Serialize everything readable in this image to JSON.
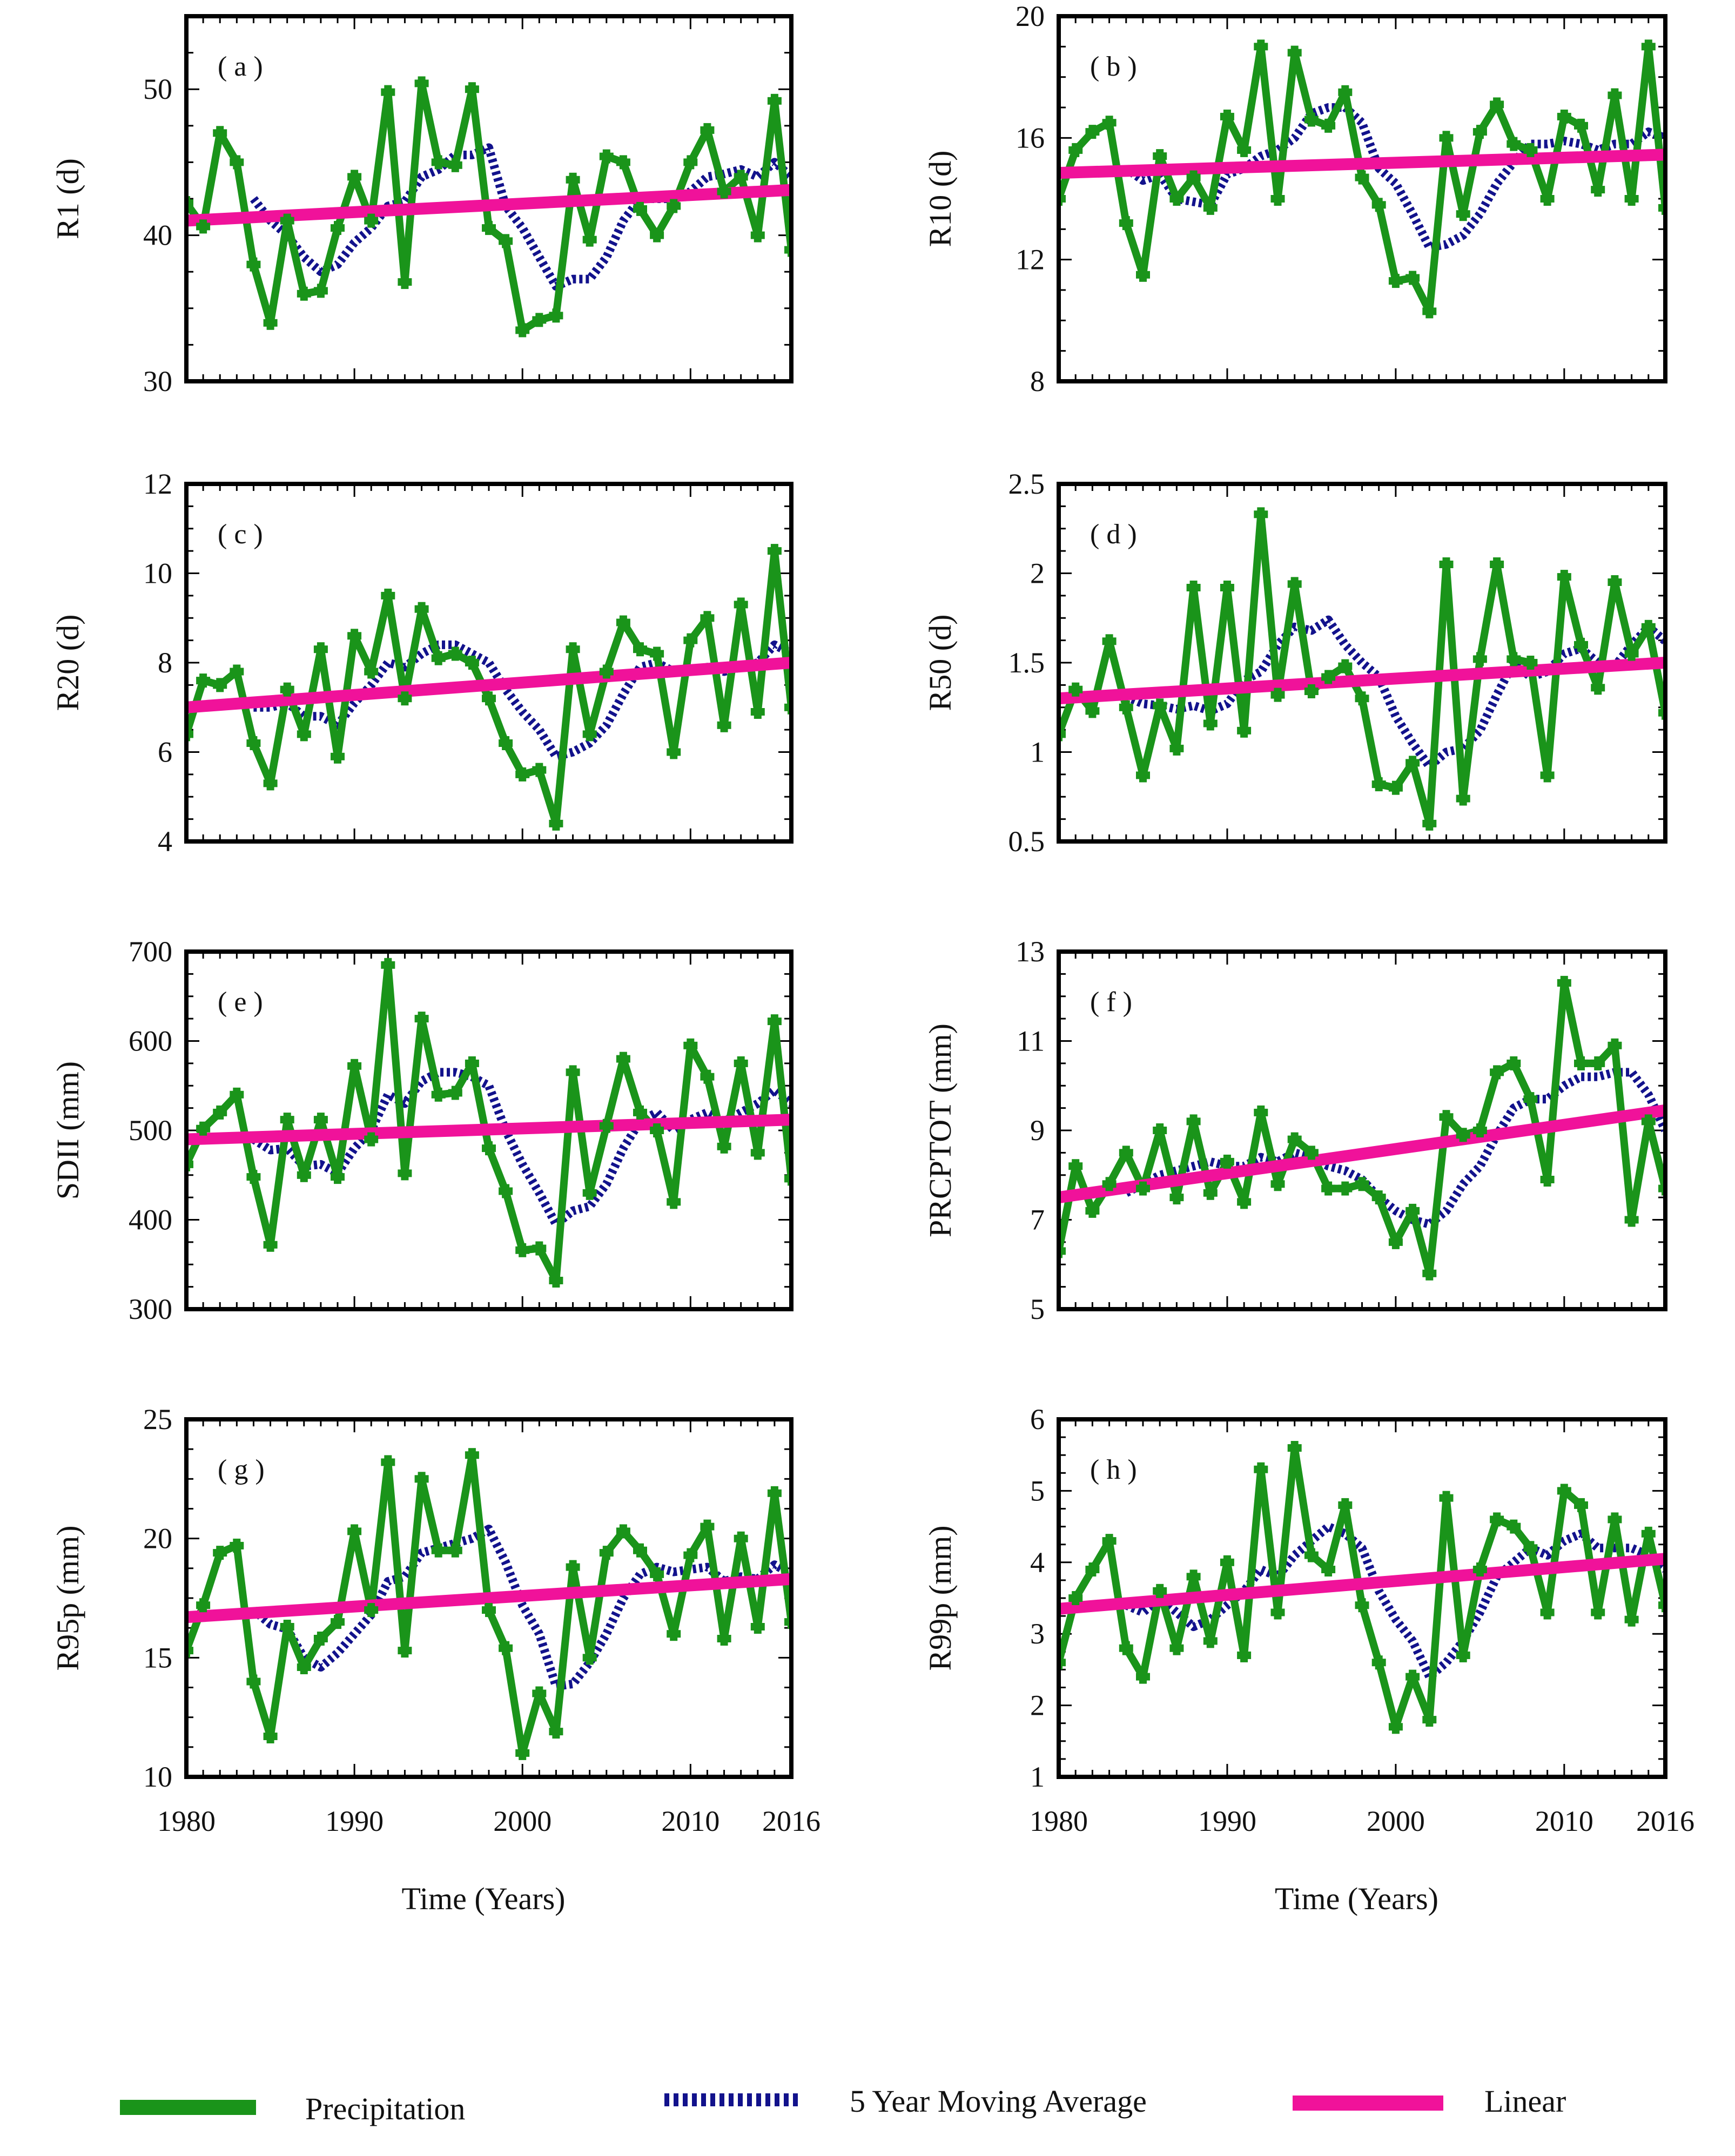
{
  "colors": {
    "precip": "#1a941a",
    "moving_avg": "#12128c",
    "linear": "#f0129a",
    "axis": "#000000"
  },
  "legend": {
    "precip": "Precipitation",
    "moving_avg": "5 Year Moving Average",
    "linear": "Linear"
  },
  "chart_data": [
    {
      "id": "a",
      "tag": "( a )",
      "type": "line",
      "ylabel": "R1 (d)",
      "ylim": [
        30,
        55
      ],
      "yticks": [
        30,
        40,
        50
      ],
      "xlabel": "Time (Years)",
      "xlim": [
        1980,
        2016
      ],
      "xticks": [
        "1980",
        "1990",
        "2000",
        "2010",
        "2016"
      ],
      "x_start": 1980,
      "series": [
        {
          "name": "Precipitation",
          "values": [
            42.2,
            40.6,
            47.0,
            45.0,
            38.0,
            34.0,
            41.0,
            36.0,
            36.2,
            40.5,
            44.0,
            41.0,
            49.8,
            36.8,
            50.4,
            45.0,
            44.8,
            50.0,
            40.5,
            39.6,
            33.5,
            34.2,
            34.5,
            43.8,
            39.7,
            45.4,
            45.0,
            41.8,
            40.0,
            42.0,
            45.0,
            47.2,
            43.0,
            44.0,
            40.0,
            49.2,
            39.0
          ]
        },
        {
          "name": "5 Year Moving Average",
          "values": [
            null,
            null,
            null,
            null,
            42.5,
            41.0,
            40.0,
            38.5,
            37.5,
            38.0,
            39.5,
            40.5,
            42.0,
            42.3,
            44.0,
            44.5,
            45.5,
            45.5,
            46.0,
            42.0,
            40.5,
            38.5,
            36.5,
            37.0,
            37.0,
            38.5,
            41.0,
            42.5,
            42.5,
            42.5,
            43.0,
            44.0,
            44.2,
            44.5,
            44.0,
            45.0,
            44.0
          ]
        },
        {
          "name": "Linear",
          "values": [
            41.0,
            43.1
          ]
        }
      ]
    },
    {
      "id": "b",
      "tag": "( b )",
      "type": "line",
      "ylabel": "R10 (d)",
      "ylim": [
        8,
        20
      ],
      "yticks": [
        8,
        12,
        16,
        20
      ],
      "xlabel": "Time (Years)",
      "xlim": [
        1980,
        2016
      ],
      "xticks": [
        "1980",
        "1990",
        "2000",
        "2010",
        "2016"
      ],
      "x_start": 1980,
      "series": [
        {
          "name": "Precipitation",
          "values": [
            14.0,
            15.6,
            16.2,
            16.5,
            13.2,
            11.5,
            15.4,
            14.0,
            14.7,
            13.7,
            16.7,
            15.6,
            19.0,
            14.0,
            18.8,
            16.6,
            16.4,
            17.5,
            14.7,
            13.8,
            11.3,
            11.4,
            10.3,
            16.0,
            13.5,
            16.2,
            17.1,
            15.8,
            15.6,
            14.0,
            16.7,
            16.4,
            14.3,
            17.4,
            14.0,
            19.0,
            13.7
          ]
        },
        {
          "name": "5 Year Moving Average",
          "values": [
            null,
            null,
            null,
            null,
            15.0,
            14.6,
            14.8,
            14.0,
            13.9,
            13.8,
            14.8,
            15.0,
            15.4,
            15.6,
            16.0,
            16.8,
            17.0,
            17.0,
            16.5,
            15.0,
            14.5,
            13.5,
            12.4,
            12.5,
            12.8,
            13.5,
            14.5,
            15.2,
            15.8,
            15.8,
            15.9,
            15.8,
            15.6,
            15.8,
            15.8,
            16.2,
            16.0
          ]
        },
        {
          "name": "Linear",
          "values": [
            14.85,
            15.45
          ]
        }
      ]
    },
    {
      "id": "c",
      "tag": "( c )",
      "type": "line",
      "ylabel": "R20 (d)",
      "ylim": [
        4,
        12
      ],
      "yticks": [
        4,
        6,
        8,
        10,
        12
      ],
      "xlabel": "Time (Years)",
      "xlim": [
        1980,
        2016
      ],
      "xticks": [
        "1980",
        "1990",
        "2000",
        "2010",
        "2016"
      ],
      "x_start": 1980,
      "series": [
        {
          "name": "Precipitation",
          "values": [
            6.4,
            7.6,
            7.5,
            7.8,
            6.2,
            5.3,
            7.4,
            6.4,
            8.3,
            5.9,
            8.6,
            7.8,
            9.5,
            7.2,
            9.2,
            8.1,
            8.2,
            8.0,
            7.2,
            6.2,
            5.5,
            5.6,
            4.4,
            8.3,
            6.4,
            7.8,
            8.9,
            8.3,
            8.2,
            6.0,
            8.5,
            9.0,
            6.6,
            9.3,
            6.9,
            10.5,
            7.0
          ]
        },
        {
          "name": "5 Year Moving Average",
          "values": [
            null,
            null,
            null,
            null,
            7.0,
            7.0,
            7.1,
            6.8,
            6.8,
            6.6,
            7.1,
            7.5,
            8.0,
            7.9,
            8.2,
            8.4,
            8.4,
            8.2,
            8.0,
            7.4,
            6.9,
            6.5,
            5.9,
            6.0,
            6.2,
            6.6,
            7.3,
            7.9,
            8.0,
            7.8,
            7.8,
            7.9,
            7.8,
            7.9,
            8.0,
            8.4,
            8.2
          ]
        },
        {
          "name": "Linear",
          "values": [
            7.0,
            8.0
          ]
        }
      ]
    },
    {
      "id": "d",
      "tag": "( d )",
      "type": "line",
      "ylabel": "R50 (d)",
      "ylim": [
        0.5,
        2.5
      ],
      "yticks": [
        0.5,
        1.0,
        1.5,
        2.0,
        2.5
      ],
      "xlabel": "Time (Years)",
      "xlim": [
        1980,
        2016
      ],
      "xticks": [
        "1980",
        "1990",
        "2000",
        "2010",
        "2016"
      ],
      "x_start": 1980,
      "series": [
        {
          "name": "Precipitation",
          "values": [
            1.1,
            1.35,
            1.23,
            1.62,
            1.25,
            0.87,
            1.26,
            1.02,
            1.92,
            1.16,
            1.92,
            1.12,
            2.33,
            1.32,
            1.94,
            1.34,
            1.42,
            1.48,
            1.3,
            0.82,
            0.8,
            0.94,
            0.6,
            2.05,
            0.74,
            1.52,
            2.05,
            1.52,
            1.5,
            0.87,
            1.98,
            1.6,
            1.36,
            1.95,
            1.55,
            1.7,
            1.22
          ]
        },
        {
          "name": "5 Year Moving Average",
          "values": [
            null,
            null,
            null,
            null,
            1.31,
            1.27,
            1.26,
            1.24,
            1.26,
            1.23,
            1.27,
            1.4,
            1.45,
            1.6,
            1.7,
            1.68,
            1.74,
            1.6,
            1.5,
            1.42,
            1.2,
            1.05,
            0.92,
            1.0,
            1.02,
            1.12,
            1.32,
            1.5,
            1.42,
            1.45,
            1.55,
            1.58,
            1.5,
            1.48,
            1.6,
            1.7,
            1.62
          ]
        },
        {
          "name": "Linear",
          "values": [
            1.3,
            1.5
          ]
        }
      ]
    },
    {
      "id": "e",
      "tag": "( e )",
      "type": "line",
      "ylabel": "SDII (mm)",
      "ylim": [
        300,
        700
      ],
      "yticks": [
        300,
        400,
        500,
        600,
        700
      ],
      "xlabel": "Time (Years)",
      "xlim": [
        1980,
        2016
      ],
      "xticks": [
        "1980",
        "1990",
        "2000",
        "2010",
        "2016"
      ],
      "x_start": 1980,
      "series": [
        {
          "name": "Precipitation",
          "values": [
            462,
            502,
            520,
            540,
            448,
            372,
            512,
            450,
            512,
            448,
            572,
            490,
            685,
            452,
            625,
            540,
            542,
            575,
            480,
            432,
            366,
            368,
            332,
            565,
            430,
            505,
            580,
            520,
            500,
            420,
            595,
            560,
            482,
            575,
            475,
            622,
            446
          ]
        },
        {
          "name": "5 Year Moving Average",
          "values": [
            null,
            null,
            null,
            null,
            490,
            478,
            480,
            460,
            462,
            452,
            480,
            500,
            540,
            530,
            555,
            565,
            565,
            560,
            550,
            500,
            462,
            430,
            395,
            410,
            415,
            440,
            480,
            510,
            520,
            500,
            512,
            520,
            510,
            520,
            530,
            545,
            530
          ]
        },
        {
          "name": "Linear",
          "values": [
            490,
            512
          ]
        }
      ]
    },
    {
      "id": "f",
      "tag": "( f )",
      "type": "line",
      "ylabel": "PRCPTOT (mm)",
      "ylim": [
        5,
        13
      ],
      "yticks": [
        5,
        7,
        9,
        11,
        13
      ],
      "xlabel": "Time (Years)",
      "xlim": [
        1980,
        2016
      ],
      "xticks": [
        "1980",
        "1990",
        "2000",
        "2010",
        "2016"
      ],
      "x_start": 1980,
      "series": [
        {
          "name": "Precipitation",
          "values": [
            6.3,
            8.2,
            7.2,
            7.8,
            8.5,
            7.7,
            9.0,
            7.5,
            9.2,
            7.6,
            8.3,
            7.4,
            9.4,
            7.8,
            8.8,
            8.5,
            7.7,
            7.7,
            7.8,
            7.5,
            6.5,
            7.2,
            5.8,
            9.3,
            8.9,
            9.0,
            10.3,
            10.5,
            9.7,
            7.9,
            12.3,
            10.5,
            10.5,
            10.9,
            7.0,
            9.2,
            7.7
          ]
        },
        {
          "name": "5 Year Moving Average",
          "values": [
            null,
            null,
            null,
            null,
            7.6,
            7.8,
            8.0,
            8.1,
            8.2,
            8.3,
            8.2,
            8.2,
            8.4,
            8.3,
            8.5,
            8.4,
            8.2,
            8.1,
            7.9,
            7.5,
            7.2,
            7.0,
            6.9,
            7.2,
            7.8,
            8.2,
            8.9,
            9.5,
            9.7,
            9.7,
            10.0,
            10.2,
            10.2,
            10.3,
            10.3,
            9.8,
            9.0
          ]
        },
        {
          "name": "Linear",
          "values": [
            7.5,
            9.45
          ]
        }
      ]
    },
    {
      "id": "g",
      "tag": "( g )",
      "type": "line",
      "ylabel": "R95p (mm)",
      "ylim": [
        10,
        25
      ],
      "yticks": [
        10,
        15,
        20,
        25
      ],
      "xlabel": "Time (Years)",
      "xlim": [
        1980,
        2016
      ],
      "xticks": [
        "1980",
        "1990",
        "2000",
        "2010",
        "2016"
      ],
      "x_start": 1980,
      "series": [
        {
          "name": "Precipitation",
          "values": [
            15.3,
            17.2,
            19.4,
            19.7,
            14.0,
            11.7,
            16.3,
            14.6,
            15.8,
            16.5,
            20.3,
            17.0,
            23.2,
            15.3,
            22.5,
            19.5,
            19.5,
            23.5,
            17.0,
            15.4,
            11.0,
            13.5,
            11.9,
            18.8,
            15.0,
            19.4,
            20.3,
            19.5,
            18.5,
            16.0,
            19.3,
            20.5,
            15.8,
            20.0,
            16.3,
            21.9,
            16.5
          ]
        },
        {
          "name": "5 Year Moving Average",
          "values": [
            null,
            null,
            null,
            null,
            17.0,
            16.4,
            16.2,
            15.0,
            14.6,
            15.2,
            16.0,
            16.8,
            18.2,
            18.4,
            19.4,
            19.6,
            19.8,
            20.0,
            20.4,
            19.0,
            17.2,
            16.0,
            13.8,
            13.9,
            14.8,
            16.0,
            17.5,
            18.5,
            18.8,
            18.6,
            18.7,
            18.8,
            18.2,
            18.4,
            18.3,
            18.9,
            18.5
          ]
        },
        {
          "name": "Linear",
          "values": [
            16.7,
            18.3
          ]
        }
      ]
    },
    {
      "id": "h",
      "tag": "( h )",
      "type": "line",
      "ylabel": "R99p (mm)",
      "ylim": [
        1,
        6
      ],
      "yticks": [
        1,
        2,
        3,
        4,
        5,
        6
      ],
      "xlabel": "Time (Years)",
      "xlim": [
        1980,
        2016
      ],
      "xticks": [
        "1980",
        "1990",
        "2000",
        "2010",
        "2016"
      ],
      "x_start": 1980,
      "series": [
        {
          "name": "Precipitation",
          "values": [
            2.6,
            3.5,
            3.9,
            4.3,
            2.8,
            2.4,
            3.6,
            2.8,
            3.8,
            2.9,
            4.0,
            2.7,
            5.3,
            3.3,
            5.6,
            4.1,
            3.9,
            4.8,
            3.4,
            2.6,
            1.7,
            2.4,
            1.8,
            4.9,
            2.7,
            3.9,
            4.6,
            4.5,
            4.2,
            3.3,
            5.0,
            4.8,
            3.3,
            4.6,
            3.2,
            4.4,
            3.4
          ]
        },
        {
          "name": "5 Year Moving Average",
          "values": [
            null,
            null,
            null,
            null,
            3.4,
            3.3,
            3.5,
            3.3,
            3.1,
            3.2,
            3.4,
            3.6,
            3.9,
            3.8,
            4.1,
            4.3,
            4.5,
            4.4,
            4.2,
            3.6,
            3.2,
            2.9,
            2.4,
            2.6,
            2.9,
            3.3,
            3.8,
            4.0,
            4.2,
            4.1,
            4.3,
            4.4,
            4.2,
            4.2,
            4.2,
            4.1,
            3.9
          ]
        },
        {
          "name": "Linear",
          "values": [
            3.35,
            4.05
          ]
        }
      ]
    }
  ]
}
